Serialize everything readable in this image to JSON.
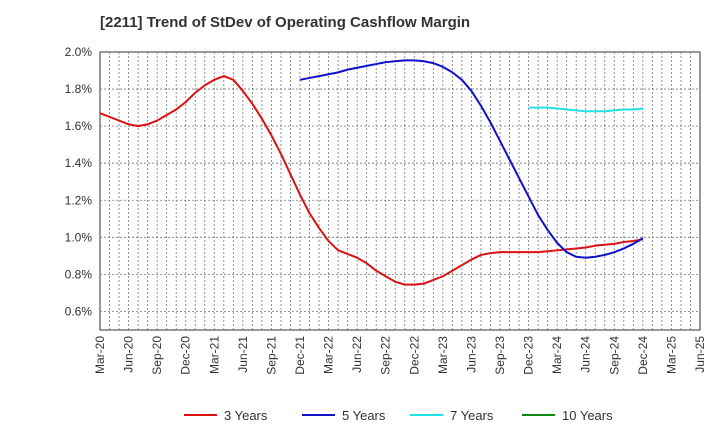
{
  "chart_data": {
    "type": "line",
    "title": "[2211]  Trend of StDev of Operating Cashflow Margin",
    "xlabel": "",
    "ylabel": "",
    "x_tick_labels": [
      "Mar-20",
      "Jun-20",
      "Sep-20",
      "Dec-20",
      "Mar-21",
      "Jun-21",
      "Sep-21",
      "Dec-21",
      "Mar-22",
      "Jun-22",
      "Sep-22",
      "Dec-22",
      "Mar-23",
      "Jun-23",
      "Sep-23",
      "Dec-23",
      "Mar-24",
      "Jun-24",
      "Sep-24",
      "Dec-24",
      "Mar-25",
      "Jun-25"
    ],
    "y_tick_labels": [
      "0.6%",
      "0.8%",
      "1.0%",
      "1.2%",
      "1.4%",
      "1.6%",
      "1.8%",
      "2.0%"
    ],
    "y_ticks": [
      0.6,
      0.8,
      1.0,
      1.2,
      1.4,
      1.6,
      1.8,
      2.0
    ],
    "ylim": [
      0.5,
      2.0
    ],
    "grid": true,
    "legend_position": "bottom",
    "series": [
      {
        "name": "3 Years",
        "color": "#dd1111",
        "points": [
          [
            "Mar-20",
            1.67
          ],
          [
            "Apr-20",
            1.65
          ],
          [
            "May-20",
            1.63
          ],
          [
            "Jun-20",
            1.61
          ],
          [
            "Jul-20",
            1.6
          ],
          [
            "Aug-20",
            1.61
          ],
          [
            "Sep-20",
            1.63
          ],
          [
            "Oct-20",
            1.66
          ],
          [
            "Nov-20",
            1.69
          ],
          [
            "Dec-20",
            1.73
          ],
          [
            "Jan-21",
            1.78
          ],
          [
            "Feb-21",
            1.82
          ],
          [
            "Mar-21",
            1.85
          ],
          [
            "Apr-21",
            1.87
          ],
          [
            "May-21",
            1.85
          ],
          [
            "Jun-21",
            1.79
          ],
          [
            "Jul-21",
            1.72
          ],
          [
            "Aug-21",
            1.64
          ],
          [
            "Sep-21",
            1.55
          ],
          [
            "Oct-21",
            1.45
          ],
          [
            "Nov-21",
            1.34
          ],
          [
            "Dec-21",
            1.23
          ],
          [
            "Jan-22",
            1.13
          ],
          [
            "Feb-22",
            1.05
          ],
          [
            "Mar-22",
            0.98
          ],
          [
            "Apr-22",
            0.93
          ],
          [
            "May-22",
            0.91
          ],
          [
            "Jun-22",
            0.89
          ],
          [
            "Jul-22",
            0.86
          ],
          [
            "Aug-22",
            0.82
          ],
          [
            "Sep-22",
            0.79
          ],
          [
            "Oct-22",
            0.76
          ],
          [
            "Nov-22",
            0.745
          ],
          [
            "Dec-22",
            0.745
          ],
          [
            "Jan-23",
            0.75
          ],
          [
            "Feb-23",
            0.77
          ],
          [
            "Mar-23",
            0.79
          ],
          [
            "Apr-23",
            0.82
          ],
          [
            "May-23",
            0.85
          ],
          [
            "Jun-23",
            0.88
          ],
          [
            "Jul-23",
            0.905
          ],
          [
            "Aug-23",
            0.915
          ],
          [
            "Sep-23",
            0.92
          ],
          [
            "Oct-23",
            0.92
          ],
          [
            "Nov-23",
            0.92
          ],
          [
            "Dec-23",
            0.92
          ],
          [
            "Jan-24",
            0.92
          ],
          [
            "Feb-24",
            0.925
          ],
          [
            "Mar-24",
            0.93
          ],
          [
            "Apr-24",
            0.935
          ],
          [
            "May-24",
            0.94
          ],
          [
            "Jun-24",
            0.945
          ],
          [
            "Jul-24",
            0.955
          ],
          [
            "Aug-24",
            0.96
          ],
          [
            "Sep-24",
            0.965
          ],
          [
            "Oct-24",
            0.975
          ],
          [
            "Nov-24",
            0.98
          ],
          [
            "Dec-24",
            0.99
          ]
        ]
      },
      {
        "name": "5 Years",
        "color": "#1111cc",
        "points": [
          [
            "Dec-21",
            1.85
          ],
          [
            "Jan-22",
            1.86
          ],
          [
            "Feb-22",
            1.87
          ],
          [
            "Mar-22",
            1.88
          ],
          [
            "Apr-22",
            1.89
          ],
          [
            "May-22",
            1.905
          ],
          [
            "Jun-22",
            1.915
          ],
          [
            "Jul-22",
            1.925
          ],
          [
            "Aug-22",
            1.935
          ],
          [
            "Sep-22",
            1.945
          ],
          [
            "Oct-22",
            1.95
          ],
          [
            "Nov-22",
            1.955
          ],
          [
            "Dec-22",
            1.955
          ],
          [
            "Jan-23",
            1.95
          ],
          [
            "Feb-23",
            1.94
          ],
          [
            "Mar-23",
            1.92
          ],
          [
            "Apr-23",
            1.89
          ],
          [
            "May-23",
            1.85
          ],
          [
            "Jun-23",
            1.79
          ],
          [
            "Jul-23",
            1.71
          ],
          [
            "Aug-23",
            1.62
          ],
          [
            "Sep-23",
            1.52
          ],
          [
            "Oct-23",
            1.42
          ],
          [
            "Nov-23",
            1.32
          ],
          [
            "Dec-23",
            1.22
          ],
          [
            "Jan-24",
            1.12
          ],
          [
            "Feb-24",
            1.04
          ],
          [
            "Mar-24",
            0.97
          ],
          [
            "Apr-24",
            0.92
          ],
          [
            "May-24",
            0.895
          ],
          [
            "Jun-24",
            0.89
          ],
          [
            "Jul-24",
            0.895
          ],
          [
            "Aug-24",
            0.905
          ],
          [
            "Sep-24",
            0.92
          ],
          [
            "Oct-24",
            0.94
          ],
          [
            "Nov-24",
            0.965
          ],
          [
            "Dec-24",
            0.995
          ]
        ]
      },
      {
        "name": "7 Years",
        "color": "#22e0e6",
        "points": [
          [
            "Dec-23",
            1.7
          ],
          [
            "Jan-24",
            1.7
          ],
          [
            "Feb-24",
            1.7
          ],
          [
            "Mar-24",
            1.695
          ],
          [
            "Apr-24",
            1.69
          ],
          [
            "May-24",
            1.685
          ],
          [
            "Jun-24",
            1.68
          ],
          [
            "Jul-24",
            1.68
          ],
          [
            "Aug-24",
            1.68
          ],
          [
            "Sep-24",
            1.685
          ],
          [
            "Oct-24",
            1.69
          ],
          [
            "Nov-24",
            1.69
          ],
          [
            "Dec-24",
            1.695
          ]
        ]
      },
      {
        "name": "10 Years",
        "color": "#118811",
        "points": []
      }
    ]
  }
}
